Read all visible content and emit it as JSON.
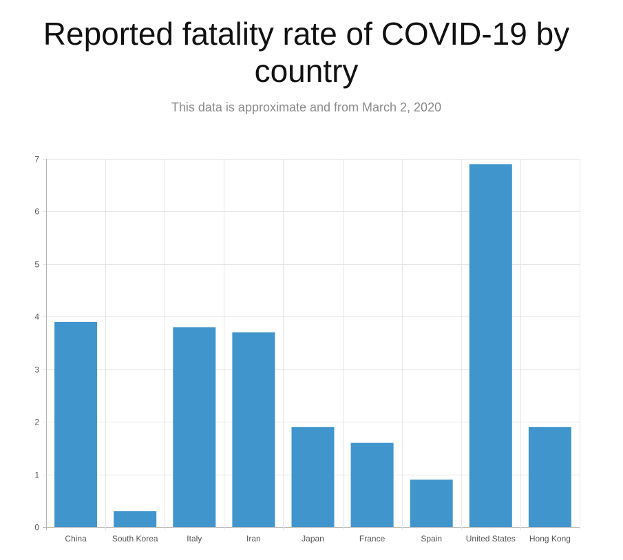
{
  "header": {
    "title": "Reported fatality rate of COVID-19 by country",
    "subtitle": "This data is approximate and from March 2, 2020"
  },
  "chart_data": {
    "type": "bar",
    "title": "Reported fatality rate of COVID-19 by country",
    "subtitle": "This data is approximate and from March 2, 2020",
    "xlabel": "",
    "ylabel": "",
    "categories": [
      "China",
      "South Korea",
      "Italy",
      "Iran",
      "Japan",
      "France",
      "Spain",
      "United States",
      "Hong Kong"
    ],
    "values": [
      3.9,
      0.3,
      3.8,
      3.7,
      1.9,
      1.6,
      0.9,
      6.9,
      1.9
    ],
    "ylim": [
      0,
      7
    ],
    "yticks": [
      0,
      1,
      2,
      3,
      4,
      5,
      6,
      7
    ],
    "grid": true,
    "legend": "none",
    "bar_color": "#4095cd",
    "grid_color": "#e6e6e6",
    "axis_color": "#b3b3b3"
  }
}
